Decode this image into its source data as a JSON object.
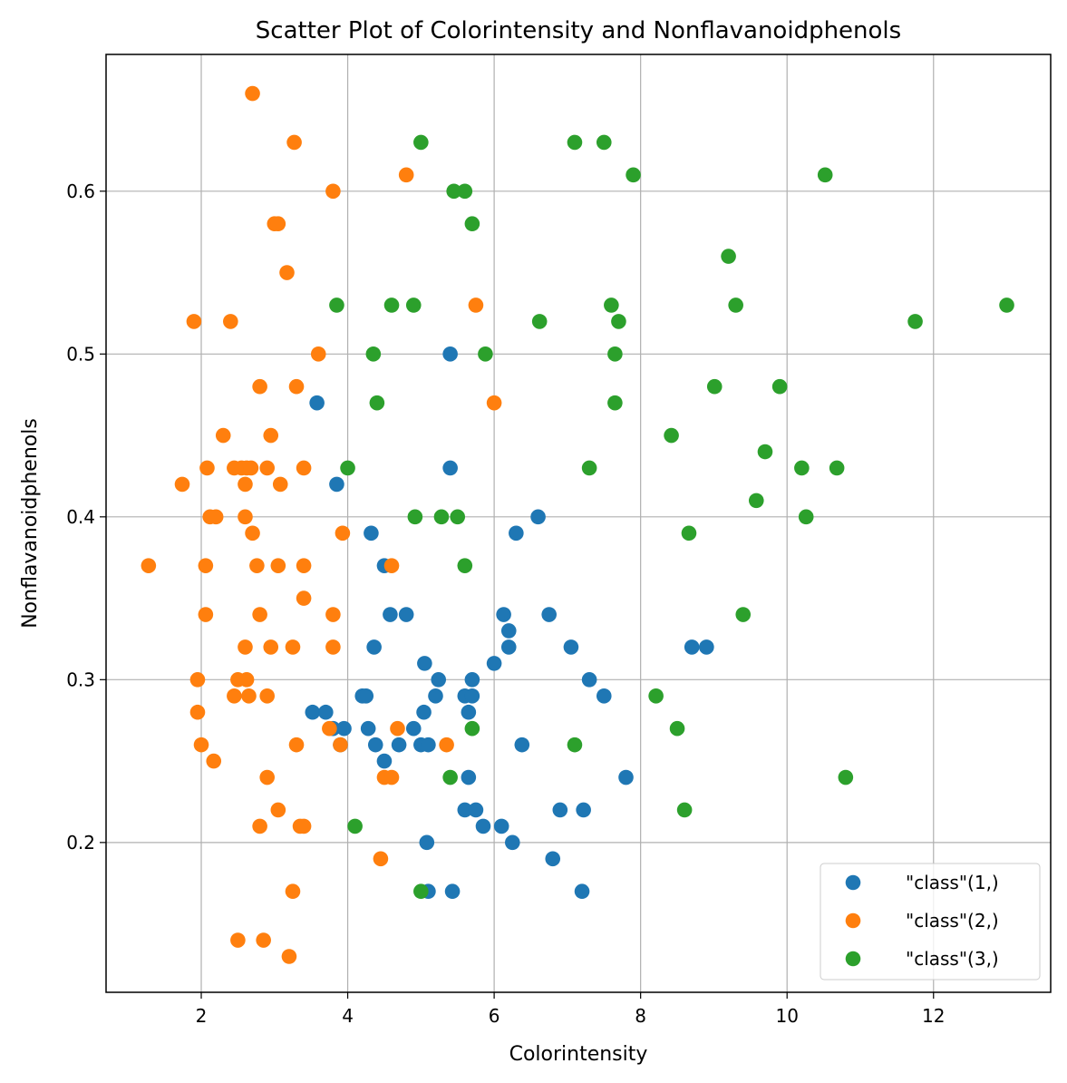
{
  "chart_data": {
    "type": "scatter",
    "title": "Scatter Plot of Colorintensity and Nonflavanoidphenols",
    "xlabel": "Colorintensity",
    "ylabel": "Nonflavanoidphenols",
    "xlim": [
      0.7,
      13.6
    ],
    "ylim": [
      0.108,
      0.684
    ],
    "xticks": [
      2,
      4,
      6,
      8,
      10,
      12
    ],
    "xtick_labels": [
      "2",
      "4",
      "6",
      "8",
      "10",
      "12"
    ],
    "yticks": [
      0.2,
      0.3,
      0.4,
      0.5,
      0.6
    ],
    "ytick_labels": [
      "0.2",
      "0.3",
      "0.4",
      "0.5",
      "0.6"
    ],
    "grid": true,
    "legend_position": "bottom-right",
    "series": [
      {
        "name": "\"class\"(1,)",
        "color": "#1f77b4",
        "points": [
          [
            3.58,
            0.47
          ],
          [
            5.4,
            0.5
          ],
          [
            5.4,
            0.43
          ],
          [
            3.85,
            0.42
          ],
          [
            4.32,
            0.39
          ],
          [
            6.3,
            0.39
          ],
          [
            6.6,
            0.4
          ],
          [
            4.5,
            0.37
          ],
          [
            4.58,
            0.34
          ],
          [
            4.8,
            0.34
          ],
          [
            6.13,
            0.34
          ],
          [
            6.75,
            0.34
          ],
          [
            6.2,
            0.33
          ],
          [
            4.36,
            0.32
          ],
          [
            6.2,
            0.32
          ],
          [
            7.05,
            0.32
          ],
          [
            8.7,
            0.32
          ],
          [
            8.9,
            0.32
          ],
          [
            5.05,
            0.31
          ],
          [
            6.0,
            0.31
          ],
          [
            5.24,
            0.3
          ],
          [
            5.7,
            0.3
          ],
          [
            7.3,
            0.3
          ],
          [
            4.2,
            0.29
          ],
          [
            4.25,
            0.29
          ],
          [
            5.2,
            0.29
          ],
          [
            5.6,
            0.29
          ],
          [
            5.7,
            0.29
          ],
          [
            7.5,
            0.29
          ],
          [
            3.52,
            0.28
          ],
          [
            3.7,
            0.28
          ],
          [
            5.04,
            0.28
          ],
          [
            5.65,
            0.28
          ],
          [
            3.8,
            0.27
          ],
          [
            3.95,
            0.27
          ],
          [
            4.28,
            0.27
          ],
          [
            4.9,
            0.27
          ],
          [
            3.9,
            0.26
          ],
          [
            4.38,
            0.26
          ],
          [
            4.7,
            0.26
          ],
          [
            5.0,
            0.26
          ],
          [
            5.1,
            0.26
          ],
          [
            6.38,
            0.26
          ],
          [
            4.5,
            0.25
          ],
          [
            5.65,
            0.24
          ],
          [
            7.8,
            0.24
          ],
          [
            5.6,
            0.22
          ],
          [
            5.75,
            0.22
          ],
          [
            6.9,
            0.22
          ],
          [
            7.22,
            0.22
          ],
          [
            5.85,
            0.21
          ],
          [
            6.1,
            0.21
          ],
          [
            5.08,
            0.2
          ],
          [
            6.25,
            0.2
          ],
          [
            6.8,
            0.19
          ],
          [
            5.1,
            0.17
          ],
          [
            5.43,
            0.17
          ],
          [
            7.2,
            0.17
          ]
        ]
      },
      {
        "name": "\"class\"(2,)",
        "color": "#ff7f0e",
        "points": [
          [
            2.7,
            0.66
          ],
          [
            3.27,
            0.63
          ],
          [
            4.8,
            0.61
          ],
          [
            3.8,
            0.6
          ],
          [
            3.0,
            0.58
          ],
          [
            3.05,
            0.58
          ],
          [
            3.17,
            0.55
          ],
          [
            1.9,
            0.52
          ],
          [
            2.4,
            0.52
          ],
          [
            5.75,
            0.53
          ],
          [
            3.6,
            0.5
          ],
          [
            2.8,
            0.48
          ],
          [
            3.3,
            0.48
          ],
          [
            6.0,
            0.47
          ],
          [
            2.3,
            0.45
          ],
          [
            2.95,
            0.45
          ],
          [
            1.74,
            0.42
          ],
          [
            2.08,
            0.43
          ],
          [
            2.45,
            0.43
          ],
          [
            2.55,
            0.43
          ],
          [
            2.62,
            0.43
          ],
          [
            2.68,
            0.43
          ],
          [
            2.9,
            0.43
          ],
          [
            3.4,
            0.43
          ],
          [
            2.6,
            0.42
          ],
          [
            3.08,
            0.42
          ],
          [
            2.12,
            0.4
          ],
          [
            2.2,
            0.4
          ],
          [
            2.6,
            0.4
          ],
          [
            2.7,
            0.39
          ],
          [
            3.93,
            0.39
          ],
          [
            1.28,
            0.37
          ],
          [
            2.06,
            0.37
          ],
          [
            2.76,
            0.37
          ],
          [
            3.05,
            0.37
          ],
          [
            3.4,
            0.37
          ],
          [
            4.6,
            0.37
          ],
          [
            3.4,
            0.35
          ],
          [
            2.06,
            0.34
          ],
          [
            2.8,
            0.34
          ],
          [
            3.8,
            0.34
          ],
          [
            2.6,
            0.32
          ],
          [
            2.95,
            0.32
          ],
          [
            3.25,
            0.32
          ],
          [
            3.8,
            0.32
          ],
          [
            1.95,
            0.3
          ],
          [
            2.5,
            0.3
          ],
          [
            2.62,
            0.3
          ],
          [
            2.45,
            0.29
          ],
          [
            2.65,
            0.29
          ],
          [
            2.9,
            0.29
          ],
          [
            1.95,
            0.28
          ],
          [
            3.75,
            0.27
          ],
          [
            4.68,
            0.27
          ],
          [
            2.0,
            0.26
          ],
          [
            3.3,
            0.26
          ],
          [
            3.9,
            0.26
          ],
          [
            5.35,
            0.26
          ],
          [
            2.17,
            0.25
          ],
          [
            2.9,
            0.24
          ],
          [
            4.5,
            0.24
          ],
          [
            4.6,
            0.24
          ],
          [
            3.05,
            0.22
          ],
          [
            2.8,
            0.21
          ],
          [
            3.35,
            0.21
          ],
          [
            3.4,
            0.21
          ],
          [
            4.45,
            0.19
          ],
          [
            3.25,
            0.17
          ],
          [
            2.5,
            0.14
          ],
          [
            2.85,
            0.14
          ],
          [
            3.2,
            0.13
          ]
        ]
      },
      {
        "name": "\"class\"(3,)",
        "color": "#2ca02c",
        "points": [
          [
            5.0,
            0.63
          ],
          [
            7.1,
            0.63
          ],
          [
            7.5,
            0.63
          ],
          [
            7.9,
            0.61
          ],
          [
            10.52,
            0.61
          ],
          [
            5.45,
            0.6
          ],
          [
            5.6,
            0.6
          ],
          [
            5.7,
            0.58
          ],
          [
            9.2,
            0.56
          ],
          [
            3.85,
            0.53
          ],
          [
            4.6,
            0.53
          ],
          [
            4.9,
            0.53
          ],
          [
            7.6,
            0.53
          ],
          [
            9.3,
            0.53
          ],
          [
            13.0,
            0.53
          ],
          [
            6.62,
            0.52
          ],
          [
            7.7,
            0.52
          ],
          [
            11.75,
            0.52
          ],
          [
            4.35,
            0.5
          ],
          [
            5.88,
            0.5
          ],
          [
            7.65,
            0.5
          ],
          [
            9.01,
            0.48
          ],
          [
            9.9,
            0.48
          ],
          [
            4.4,
            0.47
          ],
          [
            7.65,
            0.47
          ],
          [
            8.42,
            0.45
          ],
          [
            9.7,
            0.44
          ],
          [
            4.0,
            0.43
          ],
          [
            7.3,
            0.43
          ],
          [
            10.2,
            0.43
          ],
          [
            10.68,
            0.43
          ],
          [
            9.58,
            0.41
          ],
          [
            4.92,
            0.4
          ],
          [
            5.28,
            0.4
          ],
          [
            5.5,
            0.4
          ],
          [
            10.26,
            0.4
          ],
          [
            8.66,
            0.39
          ],
          [
            5.6,
            0.37
          ],
          [
            9.4,
            0.34
          ],
          [
            8.21,
            0.29
          ],
          [
            5.7,
            0.27
          ],
          [
            8.5,
            0.27
          ],
          [
            7.1,
            0.26
          ],
          [
            5.4,
            0.24
          ],
          [
            10.8,
            0.24
          ],
          [
            8.6,
            0.22
          ],
          [
            4.1,
            0.21
          ],
          [
            5.0,
            0.17
          ]
        ]
      }
    ]
  }
}
